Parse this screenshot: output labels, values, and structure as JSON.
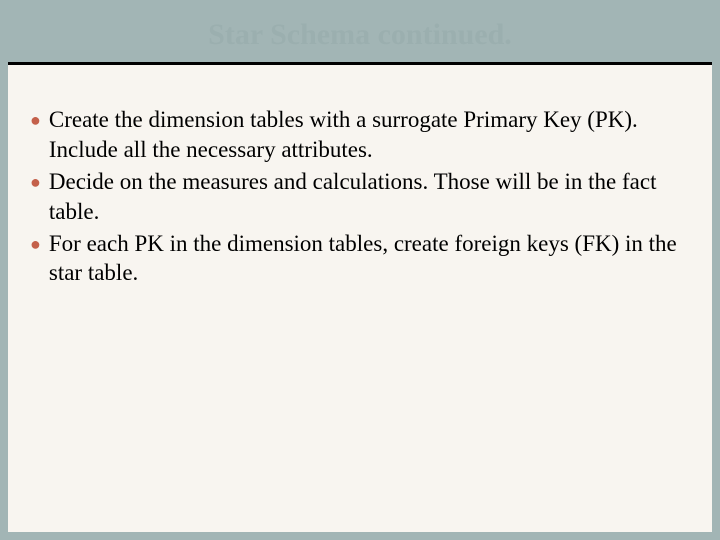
{
  "slide": {
    "title": "Star Schema continued.",
    "bullets": [
      "Create the dimension tables with a surrogate Primary Key (PK).  Include all the necessary attributes.",
      "Decide on the measures and calculations. Those will be in the fact table.",
      "For each PK in the dimension tables, create foreign keys (FK) in the star table."
    ],
    "colors": {
      "background": "#a2b5b5",
      "content_bg": "#f8f5f0",
      "title_color": "#9bafaf",
      "divider_color": "#000000",
      "bullet_marker": "#c4604a",
      "text_color": "#000000"
    },
    "typography": {
      "title_fontsize": 30,
      "body_fontsize": 23,
      "font_family": "Georgia, serif"
    }
  }
}
